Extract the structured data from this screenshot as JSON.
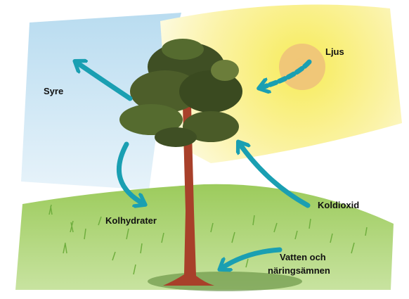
{
  "nodes": [
    {
      "label": "Ljus"
    },
    {
      "label": "Syre"
    },
    {
      "label": "Koldioxid"
    },
    {
      "label": "Kolhydrater"
    },
    {
      "lines": [
        "Vatten och",
        "näringsämnen"
      ]
    }
  ]
}
